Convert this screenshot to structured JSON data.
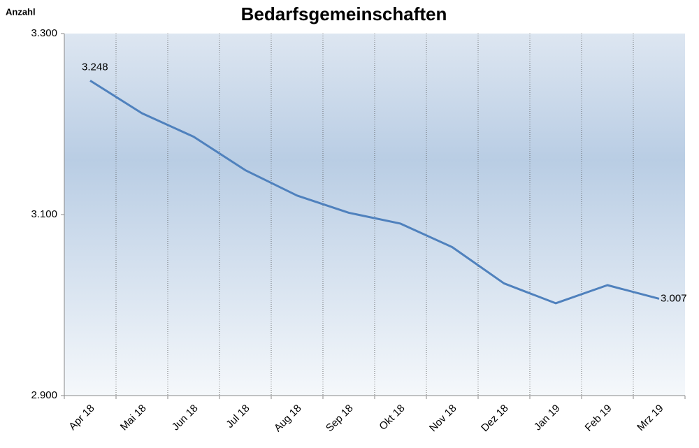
{
  "chart_data": {
    "type": "line",
    "title": "Bedarfsgemeinschaften",
    "y_label": "Anzahl",
    "categories": [
      "Apr 18",
      "Mai 18",
      "Jun 18",
      "Jul 18",
      "Aug 18",
      "Sep 18",
      "Okt 18",
      "Nov 18",
      "Dez 18",
      "Jan 19",
      "Feb 19",
      "Mrz 19"
    ],
    "series": [
      {
        "name": "Bedarfsgemeinschaften",
        "color": "#4f81bd",
        "values": [
          3248,
          3212,
          3186,
          3149,
          3121,
          3102,
          3090,
          3064,
          3024,
          3002,
          3022,
          3007
        ],
        "value_labels": [
          "3.248",
          null,
          null,
          null,
          null,
          null,
          null,
          null,
          null,
          null,
          null,
          "3.007"
        ]
      }
    ],
    "ylim": [
      2900,
      3300
    ],
    "yticks": [
      {
        "value": 2900,
        "label": "2.900"
      },
      {
        "value": 3100,
        "label": "3.100"
      },
      {
        "value": 3300,
        "label": "3.300"
      }
    ],
    "grid": true
  }
}
